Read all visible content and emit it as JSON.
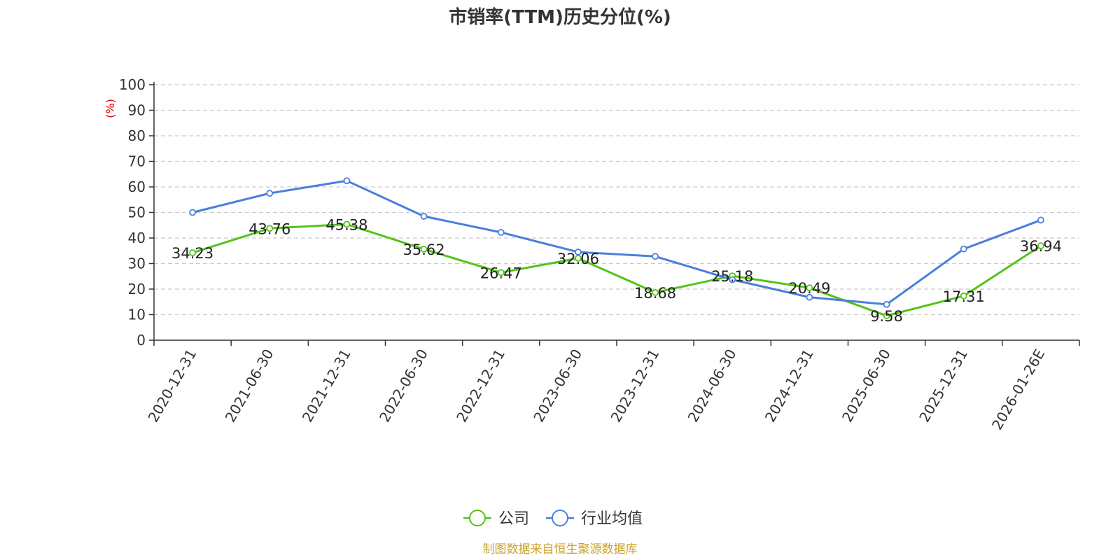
{
  "chart_data": {
    "type": "line",
    "title": "市销率(TTM)历史分位(%)",
    "ylabel": "(%)",
    "categories": [
      "2020-12-31",
      "2021-06-30",
      "2021-12-31",
      "2022-06-30",
      "2022-12-31",
      "2023-06-30",
      "2023-12-31",
      "2024-06-30",
      "2024-12-31",
      "2025-06-30",
      "2025-12-31",
      "2026-01-26E"
    ],
    "ylim": [
      0,
      100
    ],
    "yticks": [
      0,
      10,
      20,
      30,
      40,
      50,
      60,
      70,
      80,
      90,
      100
    ],
    "grid": true,
    "legend_position": "bottom-center",
    "series": [
      {
        "name": "公司",
        "color": "#52c41a",
        "labels": true,
        "values": [
          34.23,
          43.76,
          45.38,
          35.62,
          26.47,
          32.06,
          18.68,
          25.18,
          20.49,
          9.58,
          17.31,
          36.94
        ]
      },
      {
        "name": "行业均值",
        "color": "#4a7fdc",
        "labels": false,
        "values": [
          50.0,
          57.5,
          62.4,
          48.5,
          42.2,
          34.5,
          32.8,
          23.7,
          16.8,
          14.0,
          35.7,
          47.0
        ]
      }
    ]
  },
  "colors": {
    "unit_label": "#e00000",
    "source": "#c9a227",
    "grid": "#cccccc",
    "axis": "#333333"
  },
  "source_text": "制图数据来自恒生聚源数据库"
}
